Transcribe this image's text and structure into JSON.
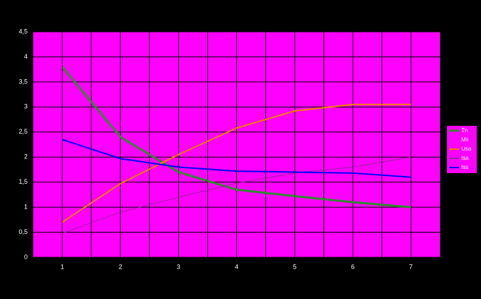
{
  "chart_data": {
    "type": "line",
    "categories": [
      "1",
      "2",
      "3",
      "4",
      "5",
      "6",
      "7"
    ],
    "series": [
      {
        "name": "Tn",
        "color": "#2e8b2e",
        "width": 3,
        "values": [
          3.8,
          2.4,
          1.7,
          1.35,
          1.22,
          1.1,
          1.0
        ]
      },
      {
        "name": "Ms",
        "color": "#ff00ff",
        "width": 1,
        "values": [
          null,
          null,
          null,
          null,
          null,
          null,
          null
        ]
      },
      {
        "name": "Usa",
        "color": "#ff8000",
        "width": 2,
        "values": [
          0.7,
          1.47,
          2.05,
          2.58,
          2.92,
          3.05,
          3.05
        ]
      },
      {
        "name": "Isa",
        "color": "#a020a0",
        "width": 1,
        "values": [
          0.48,
          0.9,
          1.2,
          1.48,
          1.68,
          1.8,
          2.0
        ]
      },
      {
        "name": "Iss",
        "color": "#0000ff",
        "width": 2,
        "values": [
          2.35,
          1.97,
          1.8,
          1.72,
          1.7,
          1.68,
          1.6
        ]
      }
    ],
    "ylim": [
      0,
      4.5
    ],
    "yticks": [
      0,
      {
        "value": 0.5,
        "label": "0,5"
      },
      1,
      {
        "value": 1.5,
        "label": "1,5"
      },
      2,
      {
        "value": 2.5,
        "label": "2,5"
      },
      3,
      {
        "value": 3.5,
        "label": "3,5"
      },
      4,
      {
        "value": 4.5,
        "label": "4,5"
      }
    ],
    "grid": true,
    "legend": "right"
  }
}
